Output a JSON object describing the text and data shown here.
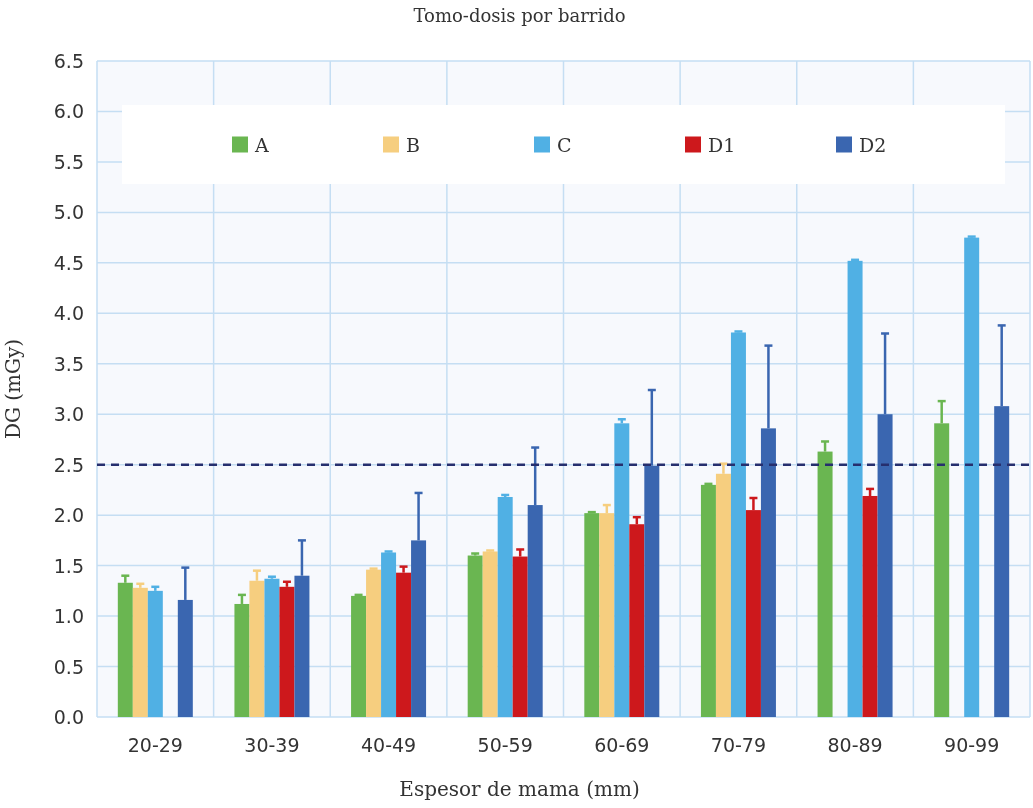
{
  "chart_data": {
    "type": "bar",
    "title": "Tomo-dosis por barrido",
    "xlabel": "Espesor de mama (mm)",
    "ylabel": "DG (mGy)",
    "categories": [
      "20-29",
      "30-39",
      "40-49",
      "50-59",
      "60-69",
      "70-79",
      "80-89",
      "90-99"
    ],
    "series": [
      {
        "name": "A",
        "color": "#6ab651",
        "values": [
          1.33,
          1.12,
          1.2,
          1.6,
          2.02,
          2.3,
          2.63,
          2.91
        ],
        "errors": [
          [
            1.33,
            1.4
          ],
          [
            1.12,
            1.21
          ],
          [
            1.2,
            1.21
          ],
          [
            1.6,
            1.62
          ],
          [
            2.02,
            2.03
          ],
          [
            2.3,
            2.31
          ],
          [
            2.63,
            2.73
          ],
          [
            2.91,
            3.13
          ]
        ]
      },
      {
        "name": "B",
        "color": "#f6ce7f",
        "values": [
          1.28,
          1.35,
          1.46,
          1.64,
          2.02,
          2.41,
          null,
          null
        ],
        "errors": [
          [
            1.28,
            1.32
          ],
          [
            1.35,
            1.45
          ],
          [
            1.46,
            1.47
          ],
          [
            1.64,
            1.65
          ],
          [
            2.02,
            2.1
          ],
          [
            2.41,
            2.51
          ],
          null,
          null
        ]
      },
      {
        "name": "C",
        "color": "#50b0e4",
        "values": [
          1.25,
          1.37,
          1.63,
          2.18,
          2.91,
          3.81,
          4.52,
          4.75
        ],
        "errors": [
          [
            1.25,
            1.29
          ],
          [
            1.37,
            1.39
          ],
          [
            1.63,
            1.64
          ],
          [
            2.18,
            2.2
          ],
          [
            2.91,
            2.95
          ],
          [
            3.81,
            3.82
          ],
          [
            4.52,
            4.53
          ],
          [
            4.75,
            4.76
          ]
        ]
      },
      {
        "name": "D1",
        "color": "#cd181c",
        "values": [
          null,
          1.29,
          1.43,
          1.59,
          1.91,
          2.05,
          2.19,
          null
        ],
        "errors": [
          null,
          [
            1.29,
            1.34
          ],
          [
            1.43,
            1.49
          ],
          [
            1.59,
            1.66
          ],
          [
            1.91,
            1.98
          ],
          [
            2.05,
            2.17
          ],
          [
            2.19,
            2.26
          ],
          null
        ]
      },
      {
        "name": "D2",
        "color": "#3a66b0",
        "values": [
          1.16,
          1.4,
          1.75,
          2.1,
          2.49,
          2.86,
          3.0,
          3.08
        ],
        "errors": [
          [
            1.16,
            1.48
          ],
          [
            1.4,
            1.75
          ],
          [
            1.75,
            2.22
          ],
          [
            2.1,
            2.67
          ],
          [
            2.49,
            3.24
          ],
          [
            2.86,
            3.68
          ],
          [
            3.0,
            3.8
          ],
          [
            3.08,
            3.88
          ]
        ]
      }
    ],
    "ylim": [
      0,
      6.5
    ],
    "yticks": [
      {
        "value": 0,
        "label": "0.0"
      },
      {
        "value": 0.5,
        "label": "0.5"
      },
      {
        "value": 1,
        "label": "1.0"
      },
      {
        "value": 1.5,
        "label": "1.5"
      },
      {
        "value": 2,
        "label": "2.0"
      },
      {
        "value": 2.5,
        "label": "2.5"
      },
      {
        "value": 3,
        "label": "3.0"
      },
      {
        "value": 3.5,
        "label": "3.5"
      },
      {
        "value": 4,
        "label": "4.0"
      },
      {
        "value": 4.5,
        "label": "4.5"
      },
      {
        "value": 5,
        "label": "5.0"
      },
      {
        "value": 5.5,
        "label": "5.5"
      },
      {
        "value": 6,
        "label": "6.0"
      },
      {
        "value": 6.5,
        "label": "6.5"
      }
    ],
    "ref_lines": [
      {
        "axis": "y",
        "value": 2.5,
        "color": "#262f6e",
        "line_style": "dashed"
      }
    ],
    "grid": true,
    "legend": "top"
  }
}
